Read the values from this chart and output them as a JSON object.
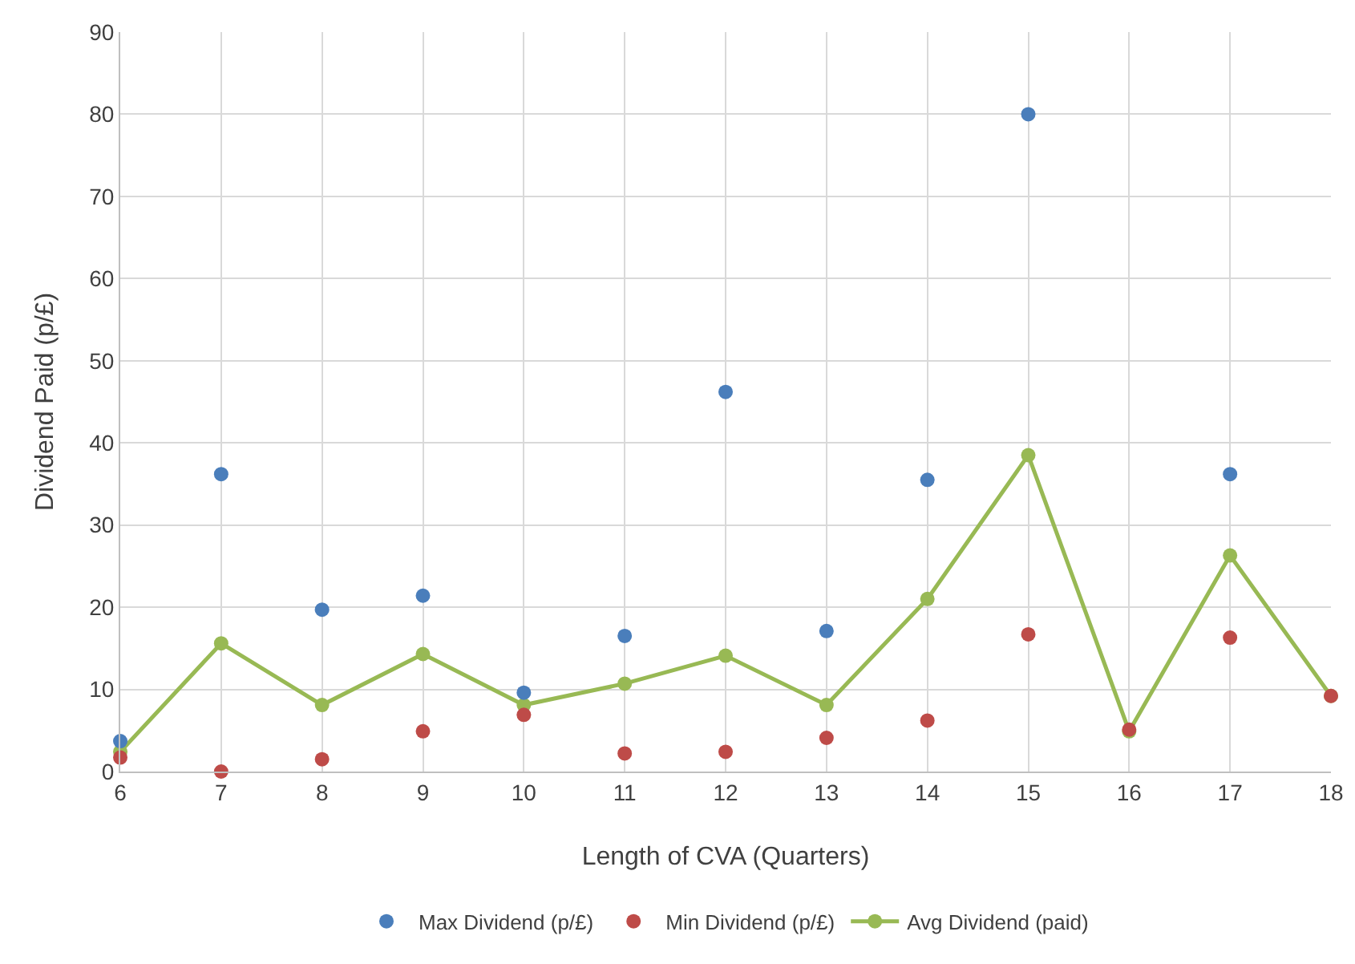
{
  "chart_data": {
    "type": "scatter",
    "xlabel": "Length of CVA (Quarters)",
    "ylabel": "Dividend Paid (p/£)",
    "x": [
      6,
      7,
      8,
      9,
      10,
      11,
      12,
      13,
      14,
      15,
      16,
      17,
      18
    ],
    "series": [
      {
        "name": "Max Dividend (p/£)",
        "type": "scatter",
        "color": "#4a7ebb",
        "values": [
          3.7,
          36.2,
          19.7,
          21.4,
          9.6,
          16.5,
          46.2,
          17.1,
          35.5,
          80,
          null,
          36.2,
          null
        ]
      },
      {
        "name": "Min Dividend (p/£)",
        "type": "scatter",
        "color": "#be4b48",
        "values": [
          1.7,
          0,
          1.5,
          4.9,
          6.9,
          2.2,
          2.4,
          4.1,
          6.2,
          16.7,
          5.1,
          16.3,
          9.2
        ]
      },
      {
        "name": "Avg Dividend (paid)",
        "type": "line",
        "color": "#98b954",
        "values": [
          2.4,
          15.6,
          8.1,
          14.3,
          8.1,
          10.7,
          14.1,
          8.1,
          21,
          38.5,
          4.9,
          26.3,
          9.2
        ]
      }
    ],
    "xlim": [
      6,
      18
    ],
    "xticks": [
      6,
      7,
      8,
      9,
      10,
      11,
      12,
      13,
      14,
      15,
      16,
      17,
      18
    ],
    "ylim": [
      0,
      90
    ],
    "yticks": [
      0,
      10,
      20,
      30,
      40,
      50,
      60,
      70,
      80,
      90
    ],
    "grid": true,
    "legend": "bottom",
    "marker": "circle"
  }
}
